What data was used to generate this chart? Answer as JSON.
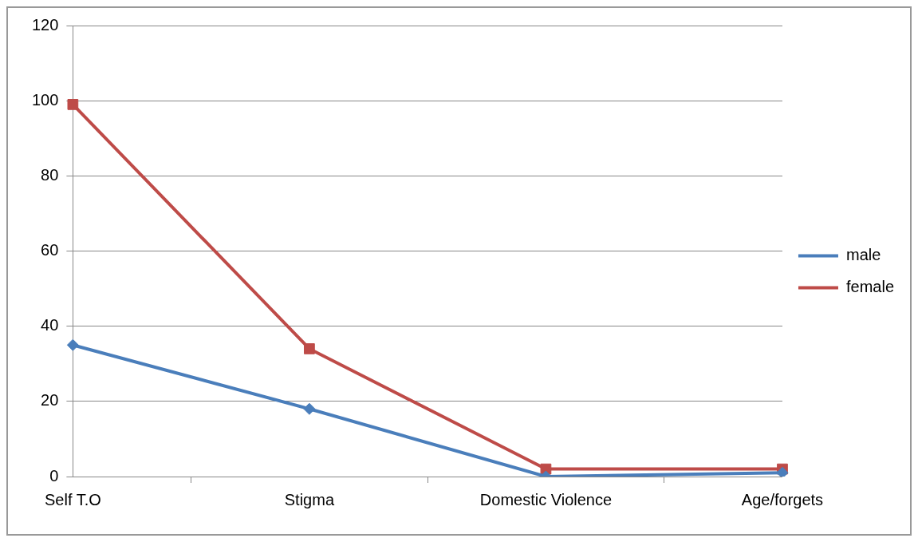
{
  "chart_data": {
    "type": "line",
    "categories": [
      "Self T.O",
      "Stigma",
      "Domestic Violence",
      "Age/forgets"
    ],
    "series": [
      {
        "name": "male",
        "color": "#4a7ebb",
        "marker": "diamond",
        "values": [
          35,
          18,
          0,
          1
        ]
      },
      {
        "name": "female",
        "color": "#be4b48",
        "marker": "square",
        "values": [
          99,
          34,
          2,
          2
        ]
      }
    ],
    "ylim": [
      0,
      120
    ],
    "yticks": [
      0,
      20,
      40,
      60,
      80,
      100,
      120
    ],
    "grid": "y",
    "legend": "right",
    "line_style": "solid"
  }
}
